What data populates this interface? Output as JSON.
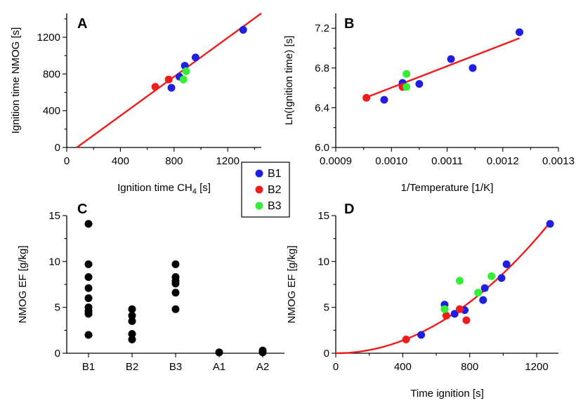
{
  "legend": {
    "entries": [
      {
        "label": "B1",
        "color": "#1f1fe0"
      },
      {
        "label": "B2",
        "color": "#ee1c1c"
      },
      {
        "label": "B3",
        "color": "#33ee33"
      }
    ]
  },
  "chart_data": [
    {
      "id": "A",
      "panel_label": "A",
      "type": "scatter",
      "xlabel": "Ignition time CH",
      "xlabel_sub": "4",
      "xlabel_suffix": " [s]",
      "ylabel": "Ignition time NMOG [s]",
      "xlim": [
        0,
        1450
      ],
      "ylim": [
        0,
        1460
      ],
      "xticks": [
        0,
        400,
        800,
        1200
      ],
      "xminor": [
        200,
        600,
        1000,
        1400
      ],
      "yticks": [
        0,
        400,
        800,
        1200
      ],
      "yminor": [
        200,
        600,
        1000,
        1400
      ],
      "fit_line": {
        "x": [
          75,
          1450
        ],
        "y": [
          0,
          1460
        ],
        "color": "#ee1c1c"
      },
      "series": [
        {
          "name": "B1",
          "color": "#1f1fe0",
          "points": [
            [
              780,
              650
            ],
            [
              840,
              770
            ],
            [
              880,
              890
            ],
            [
              960,
              980
            ],
            [
              1315,
              1280
            ]
          ]
        },
        {
          "name": "B2",
          "color": "#ee1c1c",
          "points": [
            [
              660,
              660
            ],
            [
              760,
              740
            ]
          ]
        },
        {
          "name": "B3",
          "color": "#33ee33",
          "points": [
            [
              870,
              740
            ],
            [
              890,
              830
            ]
          ]
        }
      ]
    },
    {
      "id": "B",
      "panel_label": "B",
      "type": "scatter",
      "xlabel": "1/Temperature [1/K]",
      "ylabel": "Ln(Ignition time) [s]",
      "xlim": [
        0.0009,
        0.0013
      ],
      "ylim": [
        6.0,
        7.35
      ],
      "xticks": [
        0.0009,
        0.001,
        0.0011,
        0.0012,
        0.0013
      ],
      "xtick_labels": [
        "0.0009",
        "0.0010",
        "0.0011",
        "0.0012",
        "0.0013"
      ],
      "xminor": [
        0.00095,
        0.00105,
        0.00115,
        0.00125
      ],
      "yticks": [
        6.0,
        6.4,
        6.8,
        7.2
      ],
      "ytick_labels": [
        "6.0",
        "6.4",
        "6.8",
        "7.2"
      ],
      "yminor": [
        6.2,
        6.6,
        7.0
      ],
      "fit_line": {
        "x": [
          0.000953,
          0.00123
        ],
        "y": [
          6.5,
          7.1
        ],
        "color": "#ee1c1c"
      },
      "series": [
        {
          "name": "B1",
          "color": "#1f1fe0",
          "points": [
            [
              0.000987,
              6.48
            ],
            [
              0.00102,
              6.65
            ],
            [
              0.00105,
              6.64
            ],
            [
              0.001107,
              6.89
            ],
            [
              0.001146,
              6.8
            ],
            [
              0.00123,
              7.16
            ]
          ]
        },
        {
          "name": "B2",
          "color": "#ee1c1c",
          "points": [
            [
              0.000955,
              6.5
            ],
            [
              0.00102,
              6.61
            ]
          ]
        },
        {
          "name": "B3",
          "color": "#33ee33",
          "points": [
            [
              0.001027,
              6.74
            ],
            [
              0.001027,
              6.61
            ]
          ]
        }
      ]
    },
    {
      "id": "C",
      "panel_label": "C",
      "type": "scatter",
      "xlabel": "",
      "ylabel": "NMOG EF [g/kg]",
      "categories": [
        "B1",
        "B2",
        "B3",
        "A1",
        "A2"
      ],
      "ylim": [
        0,
        15
      ],
      "yticks": [
        0,
        5,
        10,
        15
      ],
      "yminor": [
        2.5,
        7.5,
        12.5
      ],
      "point_color": "#000000",
      "values": [
        [
          14.1,
          9.7,
          8.3,
          7.1,
          6.0,
          5.0,
          4.6,
          4.3,
          2.0
        ],
        [
          4.8,
          4.1,
          3.5,
          2.1,
          1.5
        ],
        [
          9.7,
          8.3,
          7.9,
          7.6,
          6.6,
          4.8
        ],
        [
          0.1
        ],
        [
          0.3,
          0.1
        ]
      ]
    },
    {
      "id": "D",
      "panel_label": "D",
      "type": "scatter",
      "xlabel": "Time ignition [s]",
      "ylabel": "NMOG EF [g/kg]",
      "xlim": [
        0,
        1330
      ],
      "ylim": [
        0,
        15
      ],
      "xticks": [
        0,
        400,
        800,
        1200
      ],
      "xminor": [
        200,
        600,
        1000
      ],
      "yticks": [
        0,
        5,
        10,
        15
      ],
      "yminor": [
        2.5,
        7.5,
        12.5
      ],
      "fit_curve": {
        "type": "power",
        "coef": 8.7e-06,
        "exponent": 2.0,
        "x_range": [
          0,
          1280
        ],
        "color": "#ee1c1c"
      },
      "series": [
        {
          "name": "B1",
          "color": "#1f1fe0",
          "points": [
            [
              510,
              2.0
            ],
            [
              650,
              5.3
            ],
            [
              710,
              4.3
            ],
            [
              770,
              4.7
            ],
            [
              880,
              5.8
            ],
            [
              890,
              7.1
            ],
            [
              990,
              8.2
            ],
            [
              1020,
              9.7
            ],
            [
              1280,
              14.1
            ]
          ]
        },
        {
          "name": "B2",
          "color": "#ee1c1c",
          "points": [
            [
              420,
              1.5
            ],
            [
              660,
              4.1
            ],
            [
              740,
              4.8
            ],
            [
              780,
              3.6
            ]
          ]
        },
        {
          "name": "B3",
          "color": "#33ee33",
          "points": [
            [
              650,
              4.8
            ],
            [
              740,
              7.9
            ],
            [
              850,
              6.6
            ],
            [
              930,
              8.4
            ]
          ]
        }
      ]
    }
  ]
}
